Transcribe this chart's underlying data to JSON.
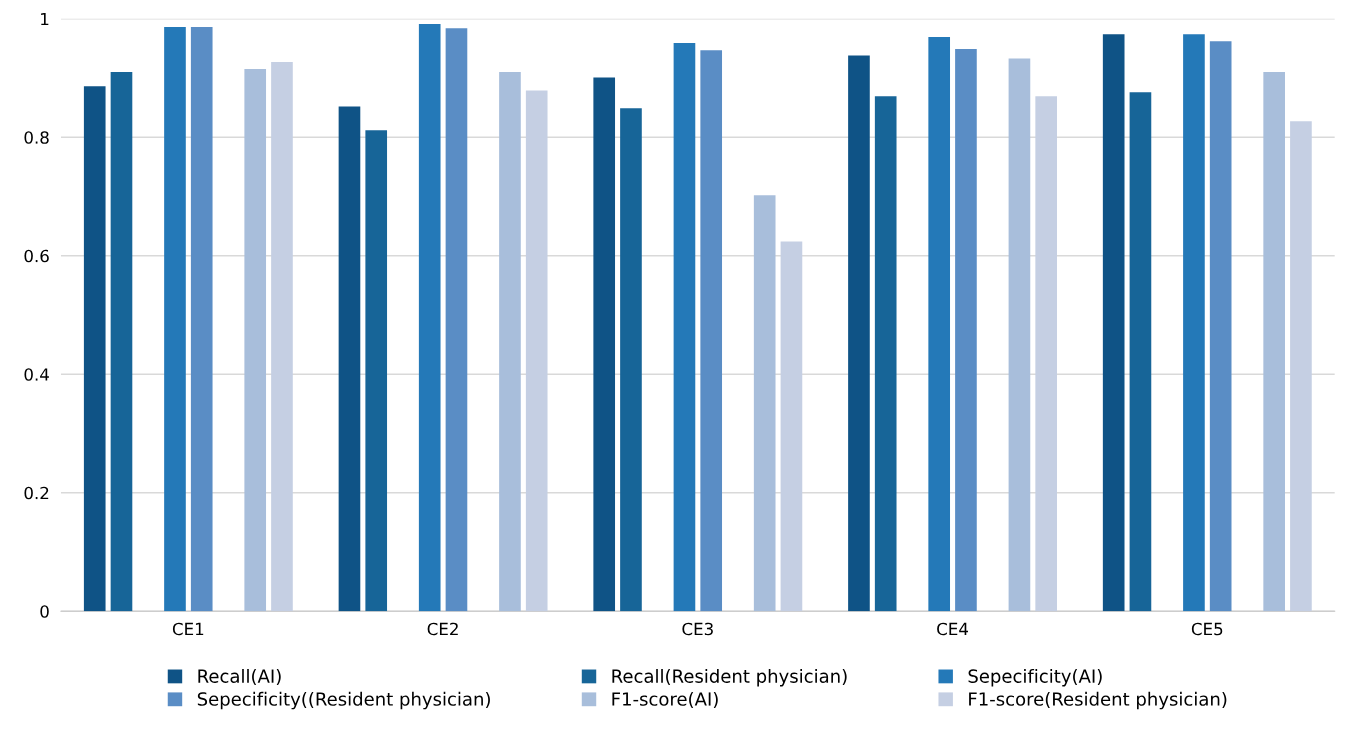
{
  "chart_data": {
    "type": "bar",
    "categories": [
      "CE1",
      "CE2",
      "CE3",
      "CE4",
      "CE5"
    ],
    "series": [
      {
        "name": "Recall(AI)",
        "color": "#0f5386",
        "values": [
          0.886,
          0.852,
          0.901,
          0.938,
          0.974
        ]
      },
      {
        "name": "Recall(Resident physician)",
        "color": "#176598",
        "values": [
          0.91,
          0.812,
          0.849,
          0.869,
          0.876
        ]
      },
      {
        "name": "Sepecificity(AI)",
        "color": "#2479b8",
        "values": [
          0.986,
          0.991,
          0.959,
          0.969,
          0.974
        ]
      },
      {
        "name": "Sepecificity((Resident physician)",
        "color": "#5a8dc5",
        "values": [
          0.986,
          0.984,
          0.947,
          0.949,
          0.962
        ]
      },
      {
        "name": "F1-score(AI)",
        "color": "#a8bedb",
        "values": [
          0.915,
          0.91,
          0.702,
          0.933,
          0.91
        ]
      },
      {
        "name": "F1-score(Resident physician)",
        "color": "#c5cfe3",
        "values": [
          0.927,
          0.879,
          0.624,
          0.869,
          0.827
        ]
      }
    ],
    "ylim": [
      0,
      1
    ],
    "yticks": [
      0,
      0.2,
      0.4,
      0.6,
      0.8,
      1
    ],
    "grid": "y",
    "legend": "bottom"
  }
}
